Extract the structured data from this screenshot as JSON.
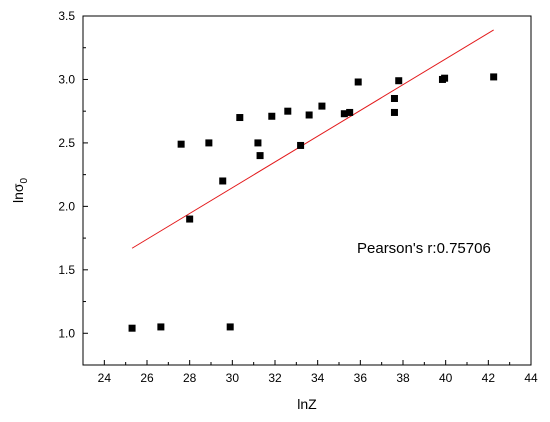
{
  "chart_data": {
    "type": "scatter",
    "xlabel": "lnZ",
    "ylabel": {
      "base": "lnσ",
      "subscript": "0"
    },
    "xlim": [
      23,
      44
    ],
    "ylim": [
      0.75,
      3.5
    ],
    "xticks": [
      24,
      26,
      28,
      30,
      32,
      34,
      36,
      38,
      40,
      42,
      44
    ],
    "yticks": [
      1.0,
      1.5,
      2.0,
      2.5,
      3.0,
      3.5
    ],
    "grid": false,
    "legend": "none",
    "series": [
      {
        "marker": "square",
        "color": "#000000",
        "points": [
          [
            25.3,
            1.04
          ],
          [
            26.65,
            1.05
          ],
          [
            27.6,
            2.49
          ],
          [
            28.0,
            1.9
          ],
          [
            28.9,
            2.5
          ],
          [
            29.55,
            2.2
          ],
          [
            29.9,
            1.05
          ],
          [
            30.35,
            2.7
          ],
          [
            31.2,
            2.5
          ],
          [
            31.3,
            2.4
          ],
          [
            31.85,
            2.71
          ],
          [
            32.6,
            2.75
          ],
          [
            33.2,
            2.48
          ],
          [
            33.6,
            2.72
          ],
          [
            34.2,
            2.79
          ],
          [
            35.25,
            2.73
          ],
          [
            35.5,
            2.74
          ],
          [
            35.9,
            2.98
          ],
          [
            37.6,
            2.85
          ],
          [
            37.6,
            2.74
          ],
          [
            37.8,
            2.99
          ],
          [
            39.85,
            3.0
          ],
          [
            39.95,
            3.01
          ],
          [
            42.25,
            3.02
          ]
        ]
      }
    ],
    "fit_line": {
      "color": "#e31a1c",
      "from": [
        25.3,
        1.67
      ],
      "to": [
        42.25,
        3.39
      ]
    },
    "annotation": "Pearson's r:0.75706"
  }
}
